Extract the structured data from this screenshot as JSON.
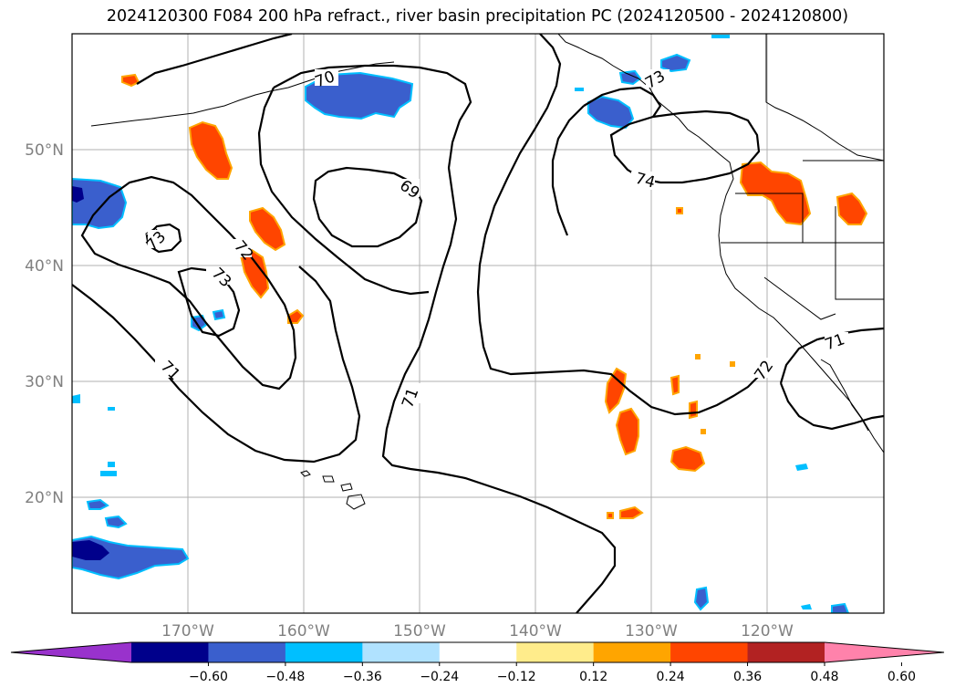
{
  "title": "2024120300 F084 200 hPa refract., river basin precipitation PC (2024120500 - 2024120800)",
  "map": {
    "projection": "PlateCarree",
    "lon_range": [
      -180,
      -110
    ],
    "lat_range": [
      10,
      60
    ],
    "lat_labels": [
      "50°N",
      "40°N",
      "30°N",
      "20°N"
    ],
    "lon_labels": [
      "170°W",
      "160°W",
      "150°W",
      "140°W",
      "130°W",
      "120°W"
    ],
    "gridlines": true,
    "contour_labels": [
      "70",
      "69",
      "73",
      "72",
      "73",
      "71",
      "71",
      "74",
      "73",
      "72",
      "71"
    ]
  },
  "colorbar": {
    "ticks": [
      "−0.60",
      "−0.48",
      "−0.36",
      "−0.24",
      "−0.12",
      "0.12",
      "0.24",
      "0.36",
      "0.48",
      "0.60"
    ],
    "colors": [
      "#9932cc",
      "#00008b",
      "#3a5fcd",
      "#00bfff",
      "#b0e2ff",
      "#ffffff",
      "#ffec8b",
      "#ffa500",
      "#ff4500",
      "#b22222",
      "#ff82ab"
    ],
    "extend": "both"
  }
}
